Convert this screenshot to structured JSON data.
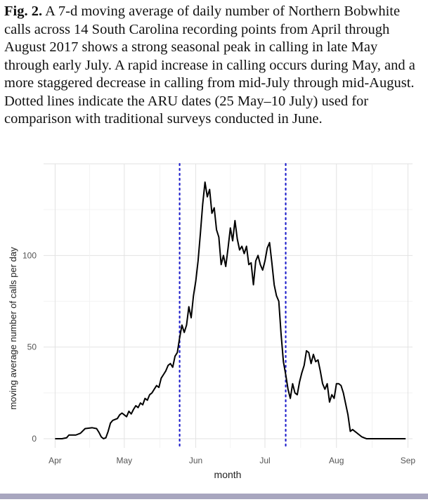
{
  "caption": {
    "label": "Fig. 2.",
    "text": "A 7-d moving average of daily number of Northern Bobwhite calls across 14 South Carolina recording points from April through August 2017 shows a strong seasonal peak in calling in late May through early July. A rapid increase in calling occurs during May, and a more staggered decrease in calling from mid-July through mid-August. Dotted lines indicate the ARU dates (25 May–10 July) used for comparison with traditional surveys conducted in June."
  },
  "chart_data": {
    "type": "line",
    "xlabel": "month",
    "ylabel": "moving average number of calls per day",
    "x_ticks": [
      {
        "label": "Apr",
        "date": "2017-04-01"
      },
      {
        "label": "May",
        "date": "2017-05-01"
      },
      {
        "label": "Jun",
        "date": "2017-06-01"
      },
      {
        "label": "Jul",
        "date": "2017-07-01"
      },
      {
        "label": "Aug",
        "date": "2017-08-01"
      },
      {
        "label": "Sep",
        "date": "2017-09-01"
      }
    ],
    "y_ticks": [
      0,
      50,
      100
    ],
    "xlim": [
      "2017-03-27",
      "2017-09-03"
    ],
    "ylim": [
      -5,
      150
    ],
    "grid": true,
    "line_color": "#000000",
    "reference_lines": [
      {
        "date": "2017-05-25",
        "style": "dotted",
        "color": "#2222cc"
      },
      {
        "date": "2017-07-10",
        "style": "dotted",
        "color": "#2222cc"
      }
    ],
    "series": [
      {
        "points": [
          [
            "2017-04-01",
            0
          ],
          [
            "2017-04-04",
            0
          ],
          [
            "2017-04-06",
            0.5
          ],
          [
            "2017-04-07",
            2
          ],
          [
            "2017-04-10",
            2
          ],
          [
            "2017-04-12",
            3
          ],
          [
            "2017-04-14",
            5.5
          ],
          [
            "2017-04-17",
            6
          ],
          [
            "2017-04-19",
            5.5
          ],
          [
            "2017-04-20",
            3.5
          ],
          [
            "2017-04-21",
            1
          ],
          [
            "2017-04-22",
            0
          ],
          [
            "2017-04-23",
            0.5
          ],
          [
            "2017-04-24",
            4
          ],
          [
            "2017-04-25",
            8.5
          ],
          [
            "2017-04-26",
            10
          ],
          [
            "2017-04-27",
            10.5
          ],
          [
            "2017-04-28",
            11
          ],
          [
            "2017-04-29",
            13
          ],
          [
            "2017-04-30",
            14
          ],
          [
            "2017-05-01",
            13
          ],
          [
            "2017-05-02",
            12
          ],
          [
            "2017-05-03",
            15
          ],
          [
            "2017-05-04",
            13.5
          ],
          [
            "2017-05-05",
            16
          ],
          [
            "2017-05-06",
            18
          ],
          [
            "2017-05-07",
            17
          ],
          [
            "2017-05-08",
            19.5
          ],
          [
            "2017-05-09",
            18.5
          ],
          [
            "2017-05-10",
            22
          ],
          [
            "2017-05-11",
            21
          ],
          [
            "2017-05-12",
            24
          ],
          [
            "2017-05-13",
            25
          ],
          [
            "2017-05-14",
            27
          ],
          [
            "2017-05-15",
            29
          ],
          [
            "2017-05-16",
            28
          ],
          [
            "2017-05-17",
            33
          ],
          [
            "2017-05-18",
            35
          ],
          [
            "2017-05-19",
            37
          ],
          [
            "2017-05-20",
            40
          ],
          [
            "2017-05-21",
            41
          ],
          [
            "2017-05-22",
            39
          ],
          [
            "2017-05-23",
            45
          ],
          [
            "2017-05-24",
            47
          ],
          [
            "2017-05-25",
            55
          ],
          [
            "2017-05-26",
            62
          ],
          [
            "2017-05-27",
            58
          ],
          [
            "2017-05-28",
            62
          ],
          [
            "2017-05-29",
            72
          ],
          [
            "2017-05-30",
            66
          ],
          [
            "2017-05-31",
            78
          ],
          [
            "2017-06-01",
            86
          ],
          [
            "2017-06-02",
            97
          ],
          [
            "2017-06-03",
            112
          ],
          [
            "2017-06-04",
            128
          ],
          [
            "2017-06-05",
            140
          ],
          [
            "2017-06-06",
            132
          ],
          [
            "2017-06-07",
            136
          ],
          [
            "2017-06-08",
            123
          ],
          [
            "2017-06-09",
            126
          ],
          [
            "2017-06-10",
            114
          ],
          [
            "2017-06-11",
            110
          ],
          [
            "2017-06-12",
            95
          ],
          [
            "2017-06-13",
            100
          ],
          [
            "2017-06-14",
            94
          ],
          [
            "2017-06-15",
            104
          ],
          [
            "2017-06-16",
            115
          ],
          [
            "2017-06-17",
            108
          ],
          [
            "2017-06-18",
            119
          ],
          [
            "2017-06-19",
            109
          ],
          [
            "2017-06-20",
            103
          ],
          [
            "2017-06-21",
            105
          ],
          [
            "2017-06-22",
            101
          ],
          [
            "2017-06-23",
            105
          ],
          [
            "2017-06-24",
            95
          ],
          [
            "2017-06-25",
            96
          ],
          [
            "2017-06-26",
            84
          ],
          [
            "2017-06-27",
            97
          ],
          [
            "2017-06-28",
            100
          ],
          [
            "2017-06-29",
            95
          ],
          [
            "2017-06-30",
            92
          ],
          [
            "2017-07-01",
            97
          ],
          [
            "2017-07-02",
            104
          ],
          [
            "2017-07-03",
            107
          ],
          [
            "2017-07-04",
            96
          ],
          [
            "2017-07-05",
            84
          ],
          [
            "2017-07-06",
            78
          ],
          [
            "2017-07-07",
            75
          ],
          [
            "2017-07-08",
            57
          ],
          [
            "2017-07-09",
            42
          ],
          [
            "2017-07-10",
            35
          ],
          [
            "2017-07-11",
            27
          ],
          [
            "2017-07-12",
            22
          ],
          [
            "2017-07-13",
            30
          ],
          [
            "2017-07-14",
            25
          ],
          [
            "2017-07-15",
            24
          ],
          [
            "2017-07-16",
            31
          ],
          [
            "2017-07-17",
            36
          ],
          [
            "2017-07-18",
            40
          ],
          [
            "2017-07-19",
            48
          ],
          [
            "2017-07-20",
            47
          ],
          [
            "2017-07-21",
            41
          ],
          [
            "2017-07-22",
            46
          ],
          [
            "2017-07-23",
            42
          ],
          [
            "2017-07-24",
            43
          ],
          [
            "2017-07-25",
            37
          ],
          [
            "2017-07-26",
            30
          ],
          [
            "2017-07-27",
            27
          ],
          [
            "2017-07-28",
            30
          ],
          [
            "2017-07-29",
            20
          ],
          [
            "2017-07-30",
            24
          ],
          [
            "2017-07-31",
            22
          ],
          [
            "2017-08-01",
            30
          ],
          [
            "2017-08-02",
            30
          ],
          [
            "2017-08-03",
            29
          ],
          [
            "2017-08-04",
            25
          ],
          [
            "2017-08-05",
            19
          ],
          [
            "2017-08-06",
            13
          ],
          [
            "2017-08-07",
            4
          ],
          [
            "2017-08-08",
            5
          ],
          [
            "2017-08-09",
            4
          ],
          [
            "2017-08-10",
            3
          ],
          [
            "2017-08-11",
            2
          ],
          [
            "2017-08-12",
            1
          ],
          [
            "2017-08-13",
            0.5
          ],
          [
            "2017-08-14",
            0
          ],
          [
            "2017-08-20",
            0
          ],
          [
            "2017-08-31",
            0
          ]
        ]
      }
    ]
  }
}
